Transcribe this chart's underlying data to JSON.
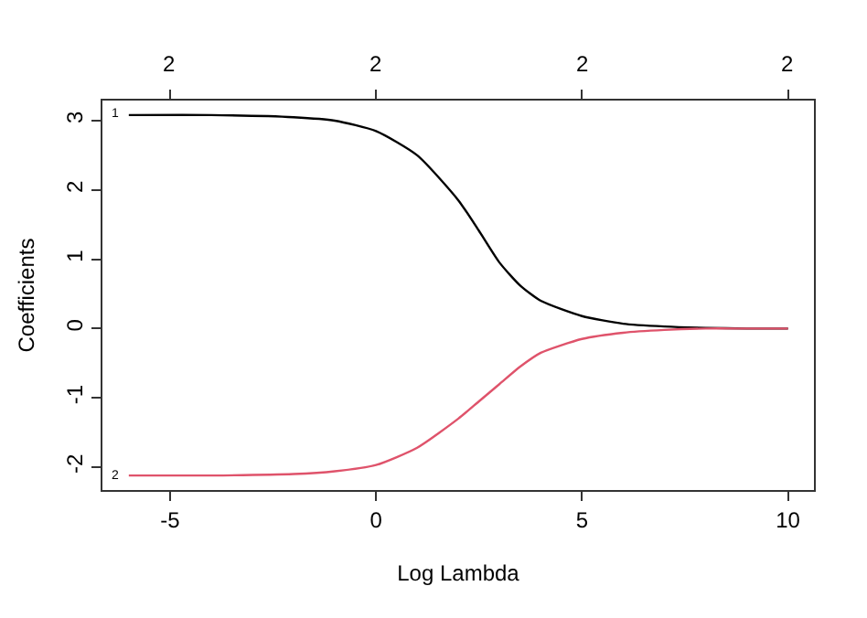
{
  "chart_data": {
    "type": "line",
    "xlabel": "Log Lambda",
    "ylabel": "Coefficients",
    "xlim": [
      -6.64,
      10.63
    ],
    "ylim": [
      -2.33,
      3.29
    ],
    "xticks": [
      -5,
      0,
      5,
      10
    ],
    "yticks": [
      -2,
      -1,
      0,
      1,
      2,
      3
    ],
    "x": [
      -6,
      -4,
      -2,
      -1,
      0,
      1,
      2,
      2.5,
      3,
      3.5,
      4,
      5,
      6,
      7,
      8,
      9,
      10
    ],
    "series": [
      {
        "name": "1",
        "color": "#000000",
        "values": [
          3.08,
          3.08,
          3.05,
          3.0,
          2.85,
          2.5,
          1.85,
          1.41,
          0.95,
          0.62,
          0.4,
          0.18,
          0.07,
          0.03,
          0.01,
          0,
          0
        ]
      },
      {
        "name": "2",
        "color": "#df536b",
        "values": [
          -2.12,
          -2.12,
          -2.1,
          -2.06,
          -1.97,
          -1.72,
          -1.3,
          -1.05,
          -0.8,
          -0.55,
          -0.35,
          -0.15,
          -0.06,
          -0.02,
          0,
          0,
          0
        ]
      }
    ],
    "annotations": [
      "2",
      "2",
      "2",
      "2"
    ],
    "grid": false,
    "marker": "none",
    "line_style": "solid"
  }
}
